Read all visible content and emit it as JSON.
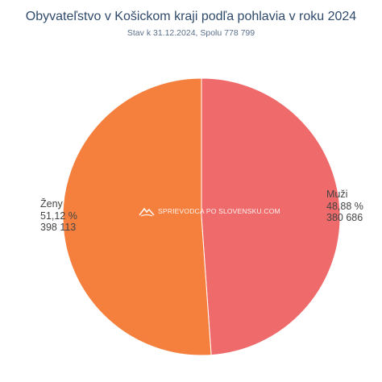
{
  "chart_data": {
    "type": "pie",
    "title": "Obyvateľstvo v Košickom kraji podľa pohlavia v roku 2024",
    "subtitle": "Stav k 31.12.2024, Spolu 778 799",
    "slices": [
      {
        "label": "Muži",
        "percent_text": "48,88 %",
        "value_text": "380 686",
        "value": 380686,
        "percent": 48.88,
        "color": "#ef6b6b"
      },
      {
        "label": "Ženy",
        "percent_text": "51,12 %",
        "value_text": "398 113",
        "value": 398113,
        "percent": 51.12,
        "color": "#f5803e"
      }
    ]
  },
  "watermark": {
    "text": "SPRIEVODCA PO SLOVENSKU.COM"
  },
  "icons": {
    "watermark": "mountain-logo-icon"
  }
}
